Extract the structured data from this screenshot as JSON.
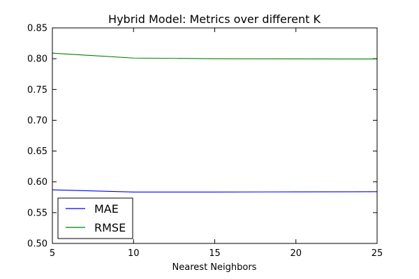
{
  "chart_data": {
    "type": "line",
    "title": "Hybrid Model: Metrics over different K",
    "xlabel": "Nearest Neighbors",
    "ylabel": "",
    "x": [
      5,
      10,
      15,
      20,
      25
    ],
    "xlim": [
      5,
      25
    ],
    "ylim": [
      0.5,
      0.85
    ],
    "xticks": [
      5,
      10,
      15,
      20,
      25
    ],
    "yticks": [
      0.5,
      0.55,
      0.6,
      0.65,
      0.7,
      0.75,
      0.8,
      0.85
    ],
    "xtick_labels": [
      "5",
      "10",
      "15",
      "20",
      "25"
    ],
    "ytick_labels": [
      "0.50",
      "0.55",
      "0.60",
      "0.65",
      "0.70",
      "0.75",
      "0.80",
      "0.85"
    ],
    "grid": false,
    "legend_position": "lower-left",
    "series": [
      {
        "name": "MAE",
        "color": "#0000ff",
        "values": [
          0.587,
          0.5835,
          0.5835,
          0.5838,
          0.584
        ]
      },
      {
        "name": "RMSE",
        "color": "#008000",
        "values": [
          0.809,
          0.801,
          0.8,
          0.7997,
          0.7995
        ]
      }
    ]
  }
}
